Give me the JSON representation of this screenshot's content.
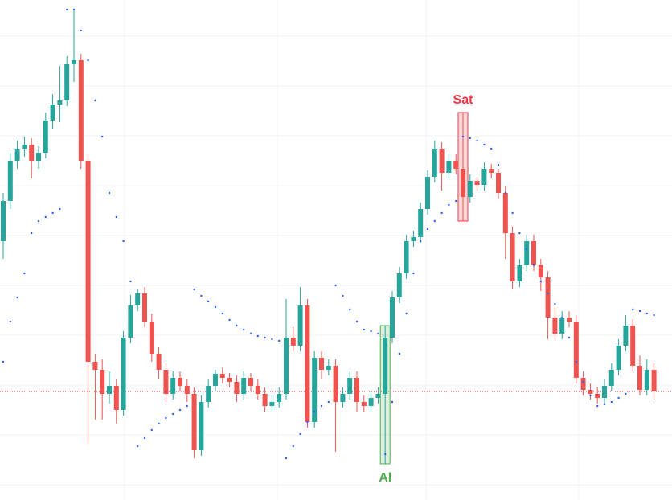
{
  "chart_data": {
    "type": "candlestick",
    "ylim": [
      0,
      622
    ],
    "grid": true,
    "up_color": "#26a69a",
    "down_color": "#ef5350",
    "ohlc": [
      [
        322,
        382,
        300,
        372
      ],
      [
        372,
        432,
        362,
        422
      ],
      [
        422,
        447,
        412,
        437
      ],
      [
        437,
        452,
        427,
        442
      ],
      [
        442,
        450,
        400,
        422
      ],
      [
        422,
        440,
        412,
        432
      ],
      [
        432,
        482,
        425,
        472
      ],
      [
        472,
        505,
        462,
        492
      ],
      [
        492,
        540,
        470,
        497
      ],
      [
        497,
        552,
        490,
        542
      ],
      [
        542,
        610,
        520,
        547
      ],
      [
        547,
        555,
        412,
        422
      ],
      [
        422,
        430,
        70,
        172
      ],
      [
        172,
        182,
        100,
        162
      ],
      [
        162,
        175,
        100,
        132
      ],
      [
        132,
        160,
        120,
        142
      ],
      [
        142,
        150,
        95,
        112
      ],
      [
        112,
        210,
        105,
        202
      ],
      [
        202,
        255,
        195,
        242
      ],
      [
        242,
        262,
        235,
        257
      ],
      [
        257,
        265,
        215,
        222
      ],
      [
        222,
        232,
        172,
        182
      ],
      [
        182,
        190,
        150,
        162
      ],
      [
        162,
        170,
        122,
        132
      ],
      [
        132,
        160,
        125,
        152
      ],
      [
        152,
        160,
        135,
        142
      ],
      [
        142,
        150,
        122,
        132
      ],
      [
        132,
        140,
        52,
        62
      ],
      [
        62,
        130,
        55,
        122
      ],
      [
        122,
        150,
        115,
        142
      ],
      [
        142,
        162,
        135,
        157
      ],
      [
        157,
        165,
        145,
        152
      ],
      [
        152,
        158,
        140,
        147
      ],
      [
        147,
        155,
        122,
        132
      ],
      [
        132,
        160,
        125,
        152
      ],
      [
        152,
        158,
        135,
        142
      ],
      [
        142,
        150,
        125,
        132
      ],
      [
        132,
        140,
        110,
        117
      ],
      [
        117,
        130,
        110,
        122
      ],
      [
        122,
        140,
        115,
        132
      ],
      [
        132,
        250,
        125,
        202
      ],
      [
        202,
        215,
        185,
        192
      ],
      [
        192,
        265,
        185,
        242
      ],
      [
        242,
        250,
        90,
        97
      ],
      [
        97,
        185,
        90,
        177
      ],
      [
        177,
        185,
        150,
        162
      ],
      [
        162,
        175,
        155,
        167
      ],
      [
        167,
        175,
        60,
        122
      ],
      [
        122,
        140,
        115,
        132
      ],
      [
        132,
        160,
        125,
        152
      ],
      [
        152,
        160,
        110,
        122
      ],
      [
        122,
        130,
        110,
        117
      ],
      [
        117,
        135,
        110,
        127
      ],
      [
        127,
        140,
        120,
        132
      ],
      [
        132,
        217,
        45,
        202
      ],
      [
        202,
        260,
        195,
        252
      ],
      [
        252,
        290,
        245,
        282
      ],
      [
        282,
        330,
        275,
        322
      ],
      [
        322,
        335,
        315,
        327
      ],
      [
        327,
        370,
        320,
        362
      ],
      [
        362,
        410,
        355,
        402
      ],
      [
        402,
        447,
        395,
        437
      ],
      [
        437,
        445,
        385,
        407
      ],
      [
        407,
        430,
        400,
        422
      ],
      [
        422,
        430,
        405,
        412
      ],
      [
        412,
        482,
        347,
        377
      ],
      [
        377,
        405,
        370,
        397
      ],
      [
        397,
        402,
        385,
        392
      ],
      [
        392,
        420,
        385,
        412
      ],
      [
        412,
        418,
        400,
        407
      ],
      [
        407,
        412,
        375,
        382
      ],
      [
        382,
        390,
        300,
        332
      ],
      [
        332,
        340,
        262,
        272
      ],
      [
        272,
        300,
        265,
        292
      ],
      [
        292,
        330,
        285,
        322
      ],
      [
        322,
        330,
        285,
        292
      ],
      [
        292,
        300,
        260,
        277
      ],
      [
        277,
        285,
        200,
        227
      ],
      [
        227,
        240,
        200,
        207
      ],
      [
        207,
        235,
        200,
        227
      ],
      [
        227,
        235,
        215,
        222
      ],
      [
        222,
        230,
        145,
        152
      ],
      [
        152,
        160,
        130,
        137
      ],
      [
        137,
        145,
        125,
        132
      ],
      [
        132,
        140,
        120,
        127
      ],
      [
        127,
        150,
        120,
        142
      ],
      [
        142,
        170,
        135,
        162
      ],
      [
        162,
        200,
        155,
        192
      ],
      [
        192,
        230,
        185,
        217
      ],
      [
        217,
        225,
        160,
        167
      ],
      [
        167,
        180,
        130,
        137
      ],
      [
        137,
        175,
        130,
        162
      ],
      [
        162,
        170,
        125,
        135
      ]
    ],
    "sar": {
      "color": "#2962ff",
      "values": [
        172,
        222,
        252,
        282,
        332,
        347,
        352,
        357,
        362,
        610,
        610,
        584,
        547,
        497,
        452,
        382,
        352,
        322,
        272,
        67,
        77,
        87,
        95,
        102,
        107,
        112,
        117,
        262,
        254,
        247,
        240,
        232,
        224,
        217,
        212,
        207,
        204,
        202,
        200,
        198,
        52,
        67,
        82,
        97,
        110,
        117,
        122,
        267,
        254,
        237,
        222,
        212,
        210,
        207,
        57,
        122,
        182,
        232,
        282,
        322,
        337,
        347,
        357,
        367,
        372,
        452,
        450,
        447,
        442,
        437,
        417,
        382,
        357,
        332,
        312,
        292,
        272,
        257,
        244,
        227,
        202,
        172,
        147,
        130,
        117,
        119,
        122,
        127,
        132,
        237,
        235,
        232,
        230
      ]
    },
    "price_line": {
      "value": 135,
      "color": "#f23645"
    },
    "annotations": [
      {
        "text": "Sat",
        "index": 65,
        "color": "#f23645"
      },
      {
        "text": "Al",
        "index": 54,
        "color": "#4caf50"
      }
    ]
  }
}
